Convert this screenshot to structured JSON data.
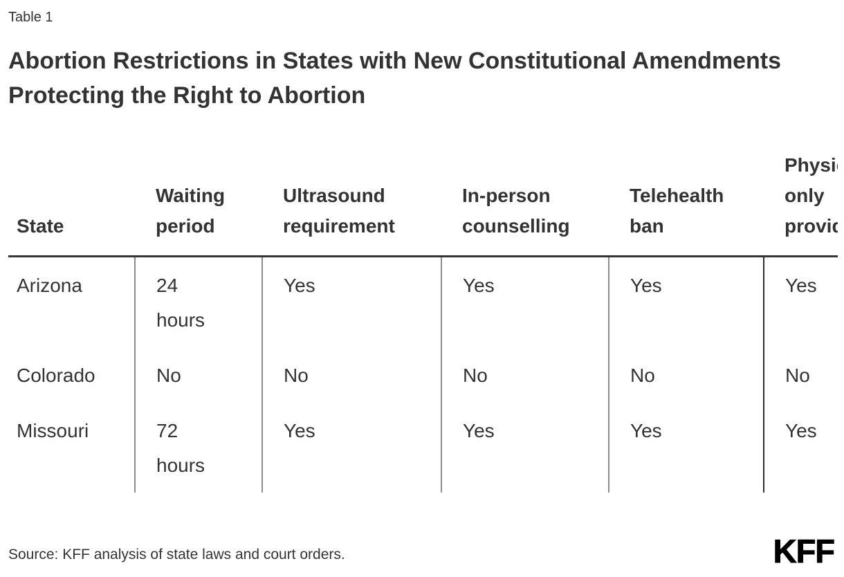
{
  "page": {
    "table_label": "Table 1",
    "title": "Abortion Restrictions in States with New Constitutional Amendments Protecting the Right to Abortion",
    "source": "Source: KFF analysis of state laws and court orders.",
    "logo_text": "KFF"
  },
  "chart_data": {
    "type": "table",
    "title": "Abortion Restrictions in States with New Constitutional Amendments Protecting the Right to Abortion",
    "columns": [
      "State",
      "Waiting period",
      "Ultrasound requirement",
      "In-person counselling",
      "Telehealth ban",
      "Physician only provider"
    ],
    "rows": [
      [
        "Arizona",
        "24 hours",
        "Yes",
        "Yes",
        "Yes",
        "Yes"
      ],
      [
        "Colorado",
        "No",
        "No",
        "No",
        "No",
        "No"
      ],
      [
        "Missouri",
        "72 hours",
        "Yes",
        "Yes",
        "Yes",
        "Yes"
      ]
    ],
    "notes": "Sixth column header is clipped at the right edge of the image, showing only 'Physi / only / provi'."
  },
  "colors": {
    "background": "#ffffff",
    "text": "#333333",
    "header_rule": "#333333",
    "column_divider": "#8c8c8c",
    "last_column_divider": "#2e2e2e",
    "logo": "#000000"
  }
}
